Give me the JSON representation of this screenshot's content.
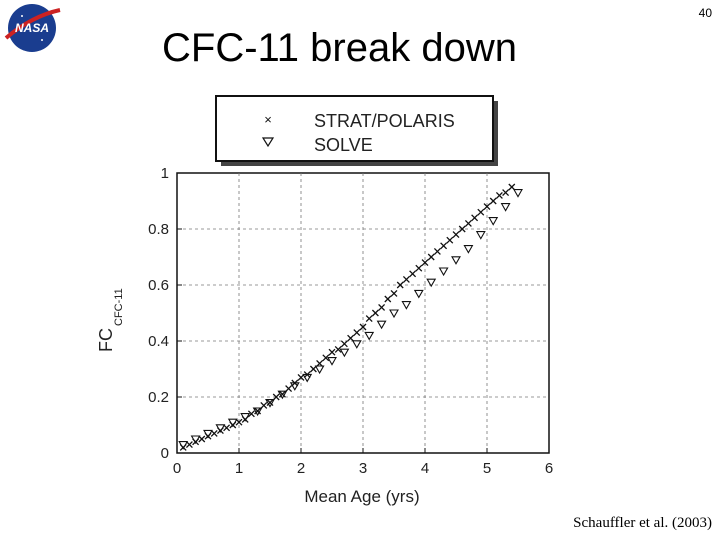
{
  "slide": {
    "title": "CFC-11 break down",
    "page_number": "40",
    "citation": "Schauffler et al. (2003)",
    "logo_text": "NASA"
  },
  "colors": {
    "logo_blue": "#1a3d8f",
    "logo_red": "#cc2222",
    "marker": "#111111",
    "grid": "#777777"
  },
  "chart_data": {
    "type": "scatter",
    "xlabel": "Mean Age (yrs)",
    "ylabel_main": "FC",
    "ylabel_sub": "CFC-11",
    "xlim": [
      0,
      6
    ],
    "ylim": [
      0,
      1
    ],
    "x_ticks": [
      "0",
      "1",
      "2",
      "3",
      "4",
      "5",
      "6"
    ],
    "y_ticks": [
      "0",
      "0.2",
      "0.4",
      "0.6",
      "0.8",
      "1"
    ],
    "grid": true,
    "legend_position": "top-left, above plot",
    "series": [
      {
        "name": "STRAT/POLARIS",
        "marker": "x",
        "x": [
          0.1,
          0.2,
          0.3,
          0.4,
          0.5,
          0.6,
          0.7,
          0.8,
          0.9,
          1.0,
          1.1,
          1.2,
          1.3,
          1.4,
          1.5,
          1.6,
          1.7,
          1.8,
          1.9,
          2.0,
          2.1,
          2.2,
          2.3,
          2.4,
          2.5,
          2.6,
          2.7,
          2.8,
          2.9,
          3.0,
          3.1,
          3.2,
          3.3,
          3.4,
          3.5,
          3.6,
          3.7,
          3.8,
          3.9,
          4.0,
          4.1,
          4.2,
          4.3,
          4.4,
          4.5,
          4.6,
          4.7,
          4.8,
          4.9,
          5.0,
          5.1,
          5.2,
          5.3,
          5.4
        ],
        "y": [
          0.02,
          0.03,
          0.04,
          0.05,
          0.06,
          0.07,
          0.08,
          0.09,
          0.1,
          0.11,
          0.12,
          0.14,
          0.15,
          0.17,
          0.18,
          0.2,
          0.21,
          0.23,
          0.25,
          0.27,
          0.28,
          0.3,
          0.32,
          0.34,
          0.36,
          0.37,
          0.39,
          0.41,
          0.43,
          0.45,
          0.48,
          0.5,
          0.52,
          0.55,
          0.57,
          0.6,
          0.62,
          0.64,
          0.66,
          0.68,
          0.7,
          0.72,
          0.74,
          0.76,
          0.78,
          0.8,
          0.82,
          0.84,
          0.86,
          0.88,
          0.9,
          0.92,
          0.93,
          0.95
        ]
      },
      {
        "name": "SOLVE",
        "marker": "triangle-down",
        "x": [
          0.1,
          0.3,
          0.5,
          0.7,
          0.9,
          1.1,
          1.3,
          1.5,
          1.7,
          1.9,
          2.1,
          2.3,
          2.5,
          2.7,
          2.9,
          3.1,
          3.3,
          3.5,
          3.7,
          3.9,
          4.1,
          4.3,
          4.5,
          4.7,
          4.9,
          5.1,
          5.3,
          5.5
        ],
        "y": [
          0.03,
          0.05,
          0.07,
          0.09,
          0.11,
          0.13,
          0.15,
          0.18,
          0.21,
          0.24,
          0.27,
          0.3,
          0.33,
          0.36,
          0.39,
          0.42,
          0.46,
          0.5,
          0.53,
          0.57,
          0.61,
          0.65,
          0.69,
          0.73,
          0.78,
          0.83,
          0.88,
          0.93
        ]
      }
    ]
  }
}
